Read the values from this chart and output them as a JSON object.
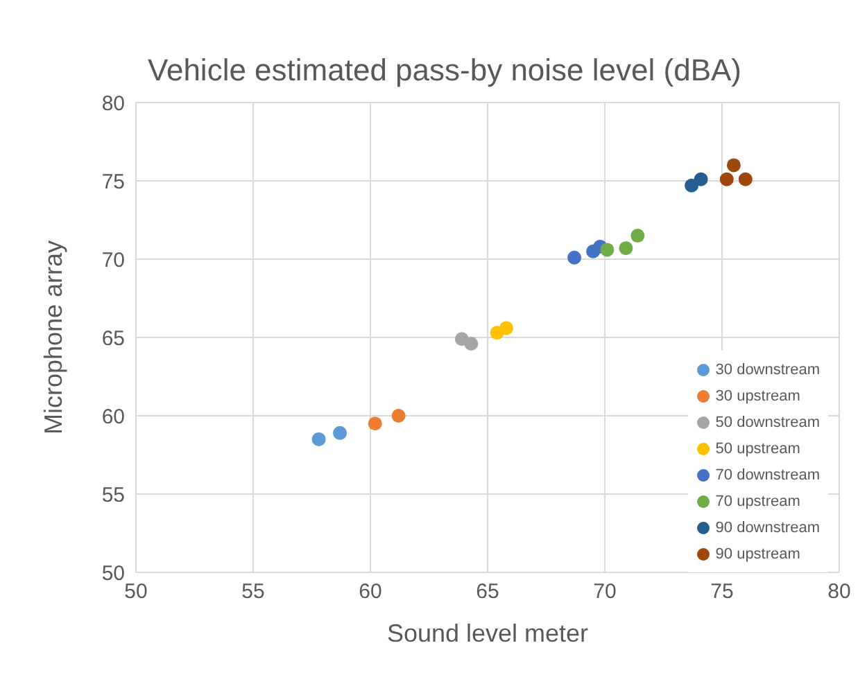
{
  "chart_data": {
    "type": "scatter",
    "title": "Vehicle estimated pass-by noise level (dBA)",
    "xlabel": "Sound level meter",
    "ylabel": "Microphone array",
    "xlim": [
      50,
      80
    ],
    "ylim": [
      50,
      80
    ],
    "xticks": [
      50,
      55,
      60,
      65,
      70,
      75,
      80
    ],
    "yticks": [
      50,
      55,
      60,
      65,
      70,
      75,
      80
    ],
    "grid": true,
    "legend": "bottom right",
    "marker": "circle",
    "series": [
      {
        "name": "30 downstream",
        "color": "#5b9bd5",
        "x": [
          57.8,
          58.7
        ],
        "values": [
          58.5,
          58.9
        ]
      },
      {
        "name": "30 upstream",
        "color": "#ed7d31",
        "x": [
          60.2,
          61.2
        ],
        "values": [
          59.5,
          60.0
        ]
      },
      {
        "name": "50 downstream",
        "color": "#a5a5a5",
        "x": [
          63.9,
          64.3
        ],
        "values": [
          64.9,
          64.6
        ]
      },
      {
        "name": "50 upstream",
        "color": "#ffc000",
        "x": [
          65.4,
          65.8
        ],
        "values": [
          65.3,
          65.6
        ]
      },
      {
        "name": "70 downstream",
        "color": "#4472c4",
        "x": [
          68.7,
          69.5,
          69.8
        ],
        "values": [
          70.1,
          70.5,
          70.8
        ]
      },
      {
        "name": "70 upstream",
        "color": "#70ad47",
        "x": [
          70.1,
          70.9,
          71.4
        ],
        "values": [
          70.6,
          70.7,
          71.5
        ]
      },
      {
        "name": "90 downstream",
        "color": "#255e91",
        "x": [
          73.7,
          74.1
        ],
        "values": [
          74.7,
          75.1
        ]
      },
      {
        "name": "90 upstream",
        "color": "#9e480e",
        "x": [
          75.2,
          75.5,
          76.0
        ],
        "values": [
          75.1,
          76.0,
          75.1
        ]
      }
    ]
  }
}
